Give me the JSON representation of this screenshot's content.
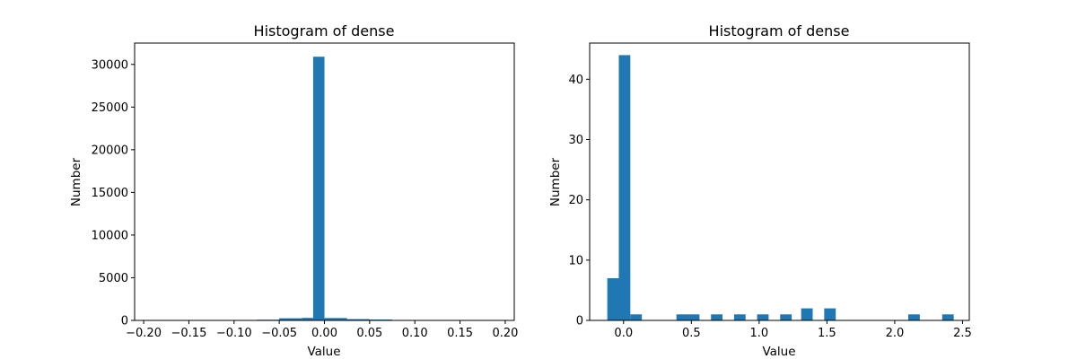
{
  "chart_data": [
    {
      "type": "bar",
      "title": "Histogram of dense",
      "xlabel": "Value",
      "ylabel": "Number",
      "xlim": [
        -0.21,
        0.21
      ],
      "ylim": [
        0,
        32500
      ],
      "xticks": [
        -0.2,
        -0.15,
        -0.1,
        -0.05,
        0.0,
        0.05,
        0.1,
        0.15,
        0.2
      ],
      "xtick_labels": [
        "−0.20",
        "−0.15",
        "−0.10",
        "−0.05",
        "0.00",
        "0.05",
        "0.10",
        "0.15",
        "0.20"
      ],
      "yticks": [
        0,
        5000,
        10000,
        15000,
        20000,
        25000,
        30000
      ],
      "ytick_labels": [
        "0",
        "5000",
        "10000",
        "15000",
        "20000",
        "25000",
        "30000"
      ],
      "grid": false,
      "bar_color": "#1f77b4",
      "bins": [
        {
          "x0": -0.2,
          "x1": -0.175,
          "value": 0
        },
        {
          "x0": -0.175,
          "x1": -0.15,
          "value": 0
        },
        {
          "x0": -0.15,
          "x1": -0.125,
          "value": 0
        },
        {
          "x0": -0.125,
          "x1": -0.1,
          "value": 0
        },
        {
          "x0": -0.1,
          "x1": -0.075,
          "value": 0
        },
        {
          "x0": -0.075,
          "x1": -0.05,
          "value": 80
        },
        {
          "x0": -0.05,
          "x1": -0.025,
          "value": 250
        },
        {
          "x0": -0.025,
          "x1": -0.0125,
          "value": 300
        },
        {
          "x0": -0.0125,
          "x1": 0.0,
          "value": 30900
        },
        {
          "x0": 0.0,
          "x1": 0.025,
          "value": 280
        },
        {
          "x0": 0.025,
          "x1": 0.05,
          "value": 150
        },
        {
          "x0": 0.05,
          "x1": 0.075,
          "value": 100
        },
        {
          "x0": 0.075,
          "x1": 0.1,
          "value": 0
        }
      ]
    },
    {
      "type": "bar",
      "title": "Histogram of dense",
      "xlabel": "Value",
      "ylabel": "Number",
      "xlim": [
        -0.25,
        2.55
      ],
      "ylim": [
        0,
        46
      ],
      "xticks": [
        0.0,
        0.5,
        1.0,
        1.5,
        2.0,
        2.5
      ],
      "xtick_labels": [
        "0.0",
        "0.5",
        "1.0",
        "1.5",
        "2.0",
        "2.5"
      ],
      "yticks": [
        0,
        10,
        20,
        30,
        40
      ],
      "ytick_labels": [
        "0",
        "10",
        "20",
        "30",
        "40"
      ],
      "grid": false,
      "bar_color": "#1f77b4",
      "bins": [
        {
          "x0": -0.12,
          "x1": -0.035,
          "value": 7
        },
        {
          "x0": -0.035,
          "x1": 0.05,
          "value": 44
        },
        {
          "x0": 0.05,
          "x1": 0.135,
          "value": 1
        },
        {
          "x0": 0.39,
          "x1": 0.475,
          "value": 1
        },
        {
          "x0": 0.475,
          "x1": 0.56,
          "value": 1
        },
        {
          "x0": 0.645,
          "x1": 0.73,
          "value": 1
        },
        {
          "x0": 0.815,
          "x1": 0.9,
          "value": 1
        },
        {
          "x0": 0.985,
          "x1": 1.07,
          "value": 1
        },
        {
          "x0": 1.155,
          "x1": 1.24,
          "value": 1
        },
        {
          "x0": 1.31,
          "x1": 1.395,
          "value": 2
        },
        {
          "x0": 1.48,
          "x1": 1.565,
          "value": 2
        },
        {
          "x0": 2.1,
          "x1": 2.185,
          "value": 1
        },
        {
          "x0": 2.35,
          "x1": 2.435,
          "value": 1
        }
      ]
    }
  ]
}
